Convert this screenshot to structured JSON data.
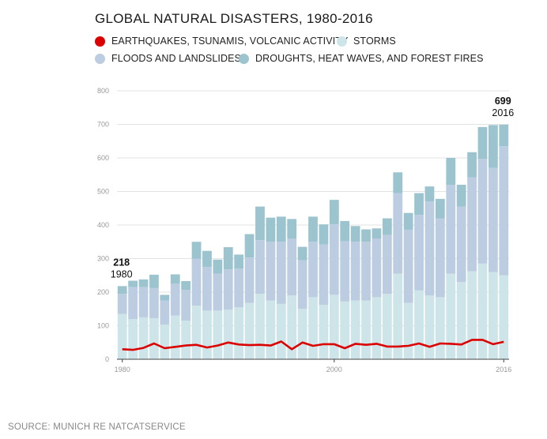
{
  "title": "GLOBAL NATURAL DISASTERS, 1980-2016",
  "legend": [
    {
      "label": "EARTHQUAKES, TSUNAMIS, VOLCANIC ACTIVITY",
      "color": "#dd0000"
    },
    {
      "label": "STORMS",
      "color": "#cde5e9"
    },
    {
      "label": "FLOODS AND LANDSLIDES",
      "color": "#bccde1"
    },
    {
      "label": "DROUGHTS, HEAT WAVES, AND FOREST FIRES",
      "color": "#9cc4cf"
    }
  ],
  "source": "SOURCE: MUNICH RE NATCATSERVICE",
  "chart_data": {
    "type": "bar",
    "stacked": true,
    "title": "GLOBAL NATURAL DISASTERS, 1980-2016",
    "ylim": [
      0,
      800
    ],
    "yticks": [
      "0",
      "100",
      "200",
      "300",
      "400",
      "500",
      "600",
      "700",
      "800"
    ],
    "xtick_labels": [
      "1980",
      "2000",
      "2016"
    ],
    "categories": [
      1980,
      1981,
      1982,
      1983,
      1984,
      1985,
      1986,
      1987,
      1988,
      1989,
      1990,
      1991,
      1992,
      1993,
      1994,
      1995,
      1996,
      1997,
      1998,
      1999,
      2000,
      2001,
      2002,
      2003,
      2004,
      2005,
      2006,
      2007,
      2008,
      2009,
      2010,
      2011,
      2012,
      2013,
      2014,
      2015,
      2016
    ],
    "series": [
      {
        "name": "STORMS",
        "color": "#cde5e9",
        "values": [
          135,
          120,
          125,
          122,
          103,
          130,
          115,
          160,
          145,
          145,
          148,
          155,
          168,
          195,
          175,
          165,
          190,
          150,
          185,
          162,
          192,
          172,
          175,
          175,
          185,
          195,
          255,
          168,
          205,
          190,
          185,
          255,
          230,
          262,
          285,
          260,
          250
        ]
      },
      {
        "name": "FLOODS AND LANDSLIDES",
        "color": "#bccde1",
        "values": [
          60,
          95,
          90,
          90,
          72,
          95,
          92,
          140,
          130,
          110,
          120,
          115,
          135,
          160,
          175,
          185,
          170,
          145,
          165,
          180,
          210,
          180,
          175,
          175,
          175,
          175,
          240,
          218,
          225,
          280,
          235,
          265,
          225,
          280,
          312,
          310,
          385
        ]
      },
      {
        "name": "DROUGHTS, HEAT WAVES, AND FOREST FIRES",
        "color": "#9cc4cf",
        "values": [
          23,
          19,
          23,
          40,
          17,
          28,
          26,
          50,
          48,
          42,
          66,
          42,
          70,
          100,
          72,
          75,
          58,
          40,
          75,
          60,
          73,
          60,
          47,
          37,
          30,
          50,
          62,
          50,
          65,
          45,
          58,
          80,
          65,
          75,
          95,
          128,
          64
        ]
      }
    ],
    "line_series": {
      "name": "EARTHQUAKES, TSUNAMIS, VOLCANIC ACTIVITY",
      "color": "#dd0000",
      "values": [
        30,
        28,
        34,
        47,
        33,
        37,
        41,
        43,
        35,
        41,
        50,
        44,
        42,
        43,
        41,
        53,
        30,
        50,
        40,
        45,
        45,
        33,
        46,
        43,
        46,
        38,
        38,
        40,
        47,
        37,
        47,
        46,
        44,
        58,
        58,
        45,
        52
      ]
    },
    "annotations": [
      {
        "year": "1980",
        "value": "218"
      },
      {
        "year": "2016",
        "value": "699"
      }
    ]
  }
}
